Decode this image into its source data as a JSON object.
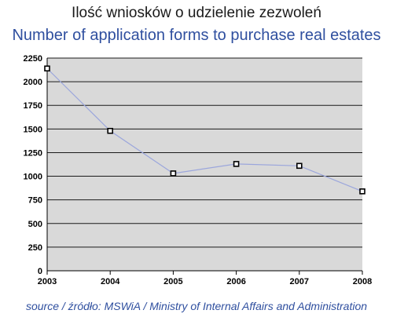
{
  "header": {
    "title_pl": "Ilość wniosków o udzielenie zezwoleń",
    "title_en": "Number of application forms to purchase real estates"
  },
  "footer": {
    "source": "source / źródło: MSWiA / Ministry of Internal Affairs and Administration"
  },
  "colors": {
    "plot_bg": "#d9d9d9",
    "line": "#9ba6dc",
    "grid": "#1a1a1a",
    "marker_border": "#000000",
    "marker_fill": "#ffffff",
    "title_en": "#2f4f9f"
  },
  "chart_data": {
    "type": "line",
    "title": "Number of application forms to purchase real estates",
    "xlabel": "",
    "ylabel": "",
    "categories": [
      "2003",
      "2004",
      "2005",
      "2006",
      "2007",
      "2008"
    ],
    "series": [
      {
        "values": [
          2140,
          1480,
          1030,
          1130,
          1110,
          840
        ]
      }
    ],
    "ylim": [
      0,
      2250
    ],
    "yticks": [
      0,
      250,
      500,
      750,
      1000,
      1250,
      1500,
      1750,
      2000,
      2250
    ],
    "grid": true,
    "legend": "none"
  }
}
